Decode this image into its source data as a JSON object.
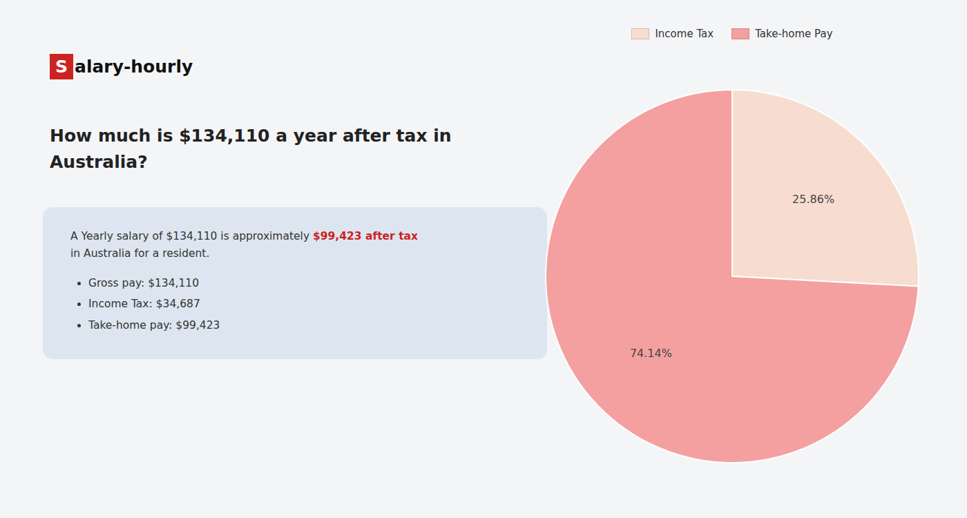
{
  "chart_data": {
    "type": "pie",
    "title": "How much is $134,110 a year after tax in Australia?",
    "annotations": [
      "S",
      "alary-hourly",
      "A Yearly salary of $134,110 is approximately ",
      "$99,423 after tax",
      "in Australia for a resident.",
      "Gross pay: $134,110",
      "Income Tax: $34,687",
      "Take-home pay: $99,423"
    ],
    "categories": [
      "Income Tax",
      "Take-home Pay"
    ],
    "values": [
      25.86,
      74.14
    ],
    "value_labels": [
      "25.86%",
      "74.14%"
    ],
    "colors": [
      "#f7ddd0",
      "#f4a0a0"
    ],
    "data_labels": true,
    "legend": "top"
  }
}
